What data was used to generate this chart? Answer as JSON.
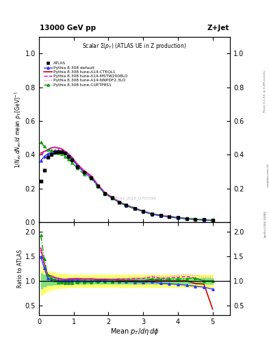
{
  "title_top": "13000 GeV pp",
  "title_right": "Z+Jet",
  "plot_title": "Scalar Σ(p_T) (ATLAS UE in Z production)",
  "xlabel": "Mean p_T/dη dφ",
  "ylabel_main": "1/N_{ev} dN_{ev}/d mean p_T [GeV]^{-1}",
  "ylabel_ratio": "Ratio to ATLAS",
  "watermark": "ATLAS_2019_I1755396",
  "rivet_label": "Rivet 3.1.10, ≥ 3.2M events",
  "arxiv_label": "[arXiv:1306.3436]",
  "mcplots_label": "mcplots.cern.ch",
  "x_data": [
    0.05,
    0.15,
    0.25,
    0.35,
    0.45,
    0.55,
    0.65,
    0.75,
    0.85,
    0.95,
    1.1,
    1.3,
    1.5,
    1.7,
    1.9,
    2.1,
    2.3,
    2.5,
    2.75,
    3.0,
    3.25,
    3.5,
    3.75,
    4.0,
    4.25,
    4.5,
    4.75,
    5.0
  ],
  "atlas_y": [
    0.245,
    0.31,
    0.385,
    0.4,
    0.415,
    0.42,
    0.42,
    0.41,
    0.39,
    0.37,
    0.33,
    0.295,
    0.265,
    0.215,
    0.17,
    0.145,
    0.12,
    0.1,
    0.082,
    0.065,
    0.048,
    0.04,
    0.033,
    0.027,
    0.022,
    0.018,
    0.015,
    0.012
  ],
  "pythia_default_y": [
    0.365,
    0.39,
    0.405,
    0.415,
    0.425,
    0.425,
    0.42,
    0.41,
    0.395,
    0.375,
    0.335,
    0.295,
    0.265,
    0.215,
    0.17,
    0.143,
    0.118,
    0.098,
    0.08,
    0.063,
    0.047,
    0.038,
    0.031,
    0.025,
    0.02,
    0.016,
    0.013,
    0.01
  ],
  "pythia_cteql1_y": [
    0.41,
    0.42,
    0.43,
    0.44,
    0.445,
    0.44,
    0.435,
    0.42,
    0.405,
    0.385,
    0.345,
    0.305,
    0.275,
    0.22,
    0.175,
    0.148,
    0.122,
    0.101,
    0.083,
    0.065,
    0.049,
    0.04,
    0.033,
    0.027,
    0.022,
    0.017,
    0.014,
    0.011
  ],
  "pythia_mstw_y": [
    0.4,
    0.415,
    0.43,
    0.44,
    0.445,
    0.44,
    0.435,
    0.42,
    0.405,
    0.385,
    0.345,
    0.305,
    0.275,
    0.22,
    0.175,
    0.148,
    0.125,
    0.104,
    0.086,
    0.068,
    0.052,
    0.042,
    0.035,
    0.029,
    0.024,
    0.019,
    0.015,
    0.012
  ],
  "pythia_nnpdf_y": [
    0.405,
    0.42,
    0.435,
    0.445,
    0.448,
    0.445,
    0.44,
    0.425,
    0.41,
    0.39,
    0.35,
    0.31,
    0.28,
    0.225,
    0.178,
    0.15,
    0.126,
    0.105,
    0.087,
    0.069,
    0.053,
    0.043,
    0.036,
    0.03,
    0.025,
    0.02,
    0.016,
    0.013
  ],
  "pythia_cuetp_y": [
    0.475,
    0.45,
    0.43,
    0.425,
    0.42,
    0.41,
    0.405,
    0.39,
    0.375,
    0.355,
    0.32,
    0.285,
    0.258,
    0.21,
    0.168,
    0.143,
    0.12,
    0.1,
    0.082,
    0.065,
    0.05,
    0.041,
    0.034,
    0.028,
    0.023,
    0.019,
    0.015,
    0.012
  ],
  "ratio_default_y": [
    1.49,
    1.26,
    1.05,
    1.04,
    1.02,
    1.01,
    1.0,
    1.0,
    1.01,
    1.01,
    1.015,
    1.0,
    1.0,
    1.0,
    1.0,
    0.99,
    0.98,
    0.98,
    0.975,
    0.97,
    0.98,
    0.95,
    0.94,
    0.926,
    0.91,
    0.89,
    0.87,
    0.83
  ],
  "ratio_cteql1_y": [
    1.67,
    1.36,
    1.12,
    1.1,
    1.07,
    1.048,
    1.036,
    1.024,
    1.038,
    1.04,
    1.045,
    1.034,
    1.038,
    1.023,
    1.029,
    1.021,
    1.017,
    1.01,
    1.012,
    1.0,
    1.021,
    1.0,
    1.0,
    1.0,
    1.0,
    0.944,
    0.933,
    0.42
  ],
  "ratio_mstw_y": [
    1.63,
    1.34,
    1.12,
    1.1,
    1.07,
    1.048,
    1.036,
    1.024,
    1.038,
    1.04,
    1.045,
    1.034,
    1.038,
    1.023,
    1.029,
    1.021,
    1.042,
    1.04,
    1.049,
    1.046,
    1.083,
    1.05,
    1.06,
    1.074,
    1.09,
    1.056,
    1.0,
    1.0
  ],
  "ratio_nnpdf_y": [
    1.65,
    1.355,
    1.13,
    1.11,
    1.08,
    1.058,
    1.048,
    1.036,
    1.051,
    1.054,
    1.06,
    1.051,
    1.057,
    1.047,
    1.047,
    1.034,
    1.05,
    1.05,
    1.061,
    1.062,
    1.104,
    1.075,
    1.091,
    1.111,
    1.136,
    1.111,
    1.067,
    1.083
  ],
  "ratio_cuetp_y": [
    1.94,
    1.45,
    1.12,
    1.06,
    1.01,
    0.976,
    0.964,
    0.951,
    0.962,
    0.959,
    0.97,
    0.966,
    0.974,
    0.977,
    0.988,
    0.986,
    1.0,
    1.0,
    1.0,
    1.0,
    1.042,
    1.025,
    1.03,
    1.037,
    1.045,
    1.056,
    1.0,
    1.0
  ],
  "band_green_lo": [
    0.85,
    0.88,
    0.91,
    0.92,
    0.93,
    0.93,
    0.94,
    0.94,
    0.94,
    0.94,
    0.94,
    0.945,
    0.945,
    0.945,
    0.945,
    0.945,
    0.945,
    0.945,
    0.945,
    0.945,
    0.945,
    0.945,
    0.945,
    0.945,
    0.945,
    0.945,
    0.945,
    0.945
  ],
  "band_green_hi": [
    1.15,
    1.12,
    1.09,
    1.08,
    1.07,
    1.07,
    1.06,
    1.06,
    1.06,
    1.06,
    1.06,
    1.055,
    1.055,
    1.055,
    1.055,
    1.055,
    1.055,
    1.055,
    1.055,
    1.055,
    1.055,
    1.055,
    1.055,
    1.055,
    1.055,
    1.055,
    1.055,
    1.055
  ],
  "band_yellow_lo": [
    0.7,
    0.75,
    0.8,
    0.82,
    0.84,
    0.85,
    0.86,
    0.86,
    0.87,
    0.87,
    0.87,
    0.875,
    0.875,
    0.875,
    0.875,
    0.875,
    0.875,
    0.875,
    0.875,
    0.875,
    0.875,
    0.875,
    0.875,
    0.875,
    0.875,
    0.875,
    0.875,
    0.875
  ],
  "band_yellow_hi": [
    1.3,
    1.25,
    1.2,
    1.18,
    1.16,
    1.15,
    1.14,
    1.14,
    1.13,
    1.13,
    1.13,
    1.125,
    1.125,
    1.125,
    1.125,
    1.125,
    1.125,
    1.125,
    1.125,
    1.125,
    1.125,
    1.125,
    1.125,
    1.125,
    1.125,
    1.125,
    1.125,
    1.125
  ],
  "color_atlas": "#000000",
  "color_default": "#3333ff",
  "color_cteql1": "#cc0000",
  "color_mstw": "#cc00cc",
  "color_nnpdf": "#ff66cc",
  "color_cuetp": "#009900",
  "color_band_green": "#80e080",
  "color_band_yellow": "#ffff70",
  "xlim": [
    0,
    5.5
  ],
  "ylim_main": [
    0,
    1.1
  ],
  "ylim_ratio": [
    0.3,
    2.2
  ],
  "yticks_main": [
    0.0,
    0.2,
    0.4,
    0.6,
    0.8,
    1.0
  ],
  "yticks_ratio": [
    0.5,
    1.0,
    1.5,
    2.0
  ],
  "xticks": [
    0,
    1,
    2,
    3,
    4,
    5
  ]
}
